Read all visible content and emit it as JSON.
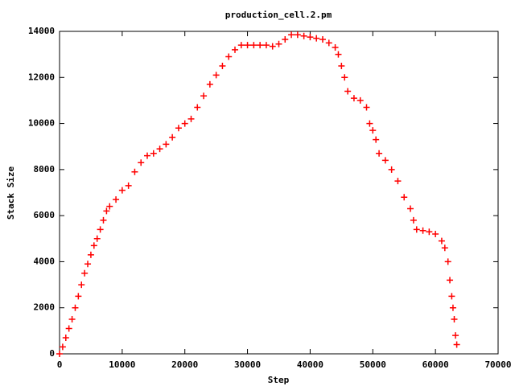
{
  "chart_data": {
    "type": "scatter",
    "title": "production_cell.2.pm",
    "x_label": "Step",
    "y_label": "Stack Size",
    "xlim": [
      0,
      70000
    ],
    "ylim": [
      0,
      14000
    ],
    "xticks": [
      0,
      10000,
      20000,
      30000,
      40000,
      50000,
      60000,
      70000
    ],
    "yticks": [
      0,
      2000,
      4000,
      6000,
      8000,
      10000,
      12000,
      14000
    ],
    "grid": false,
    "series": [
      {
        "color": "#ff0000",
        "x": [
          0,
          500,
          1000,
          1500,
          2000,
          2500,
          3000,
          3500,
          4000,
          4500,
          5000,
          5500,
          6000,
          6500,
          7000,
          7500,
          8000,
          9000,
          10000,
          11000,
          12000,
          13000,
          14000,
          15000,
          16000,
          17000,
          18000,
          19000,
          20000,
          21000,
          22000,
          23000,
          24000,
          25000,
          26000,
          27000,
          28000,
          29000,
          30000,
          31000,
          32000,
          33000,
          34000,
          35000,
          36000,
          37000,
          38000,
          39000,
          40000,
          41000,
          42000,
          43000,
          44000,
          44500,
          45000,
          45500,
          46000,
          47000,
          48000,
          49000,
          49500,
          50000,
          50500,
          51000,
          52000,
          53000,
          54000,
          55000,
          56000,
          56500,
          57000,
          58000,
          59000,
          60000,
          61000,
          61500,
          62000,
          62300,
          62600,
          62800,
          63000,
          63200,
          63400
        ],
        "values": [
          0,
          300,
          700,
          1100,
          1500,
          2000,
          2500,
          3000,
          3500,
          3900,
          4300,
          4700,
          5000,
          5400,
          5800,
          6200,
          6400,
          6700,
          7100,
          7300,
          7900,
          8300,
          8600,
          8700,
          8900,
          9100,
          9400,
          9800,
          10000,
          10200,
          10700,
          11200,
          11700,
          12100,
          12500,
          12900,
          13200,
          13400,
          13400,
          13400,
          13400,
          13400,
          13350,
          13450,
          13650,
          13850,
          13850,
          13800,
          13750,
          13700,
          13650,
          13500,
          13300,
          13000,
          12500,
          12000,
          11400,
          11100,
          11000,
          10700,
          10000,
          9700,
          9300,
          8700,
          8400,
          8000,
          7500,
          6800,
          6300,
          5800,
          5400,
          5350,
          5300,
          5200,
          4900,
          4600,
          4000,
          3200,
          2500,
          2000,
          1500,
          800,
          400
        ]
      }
    ]
  }
}
